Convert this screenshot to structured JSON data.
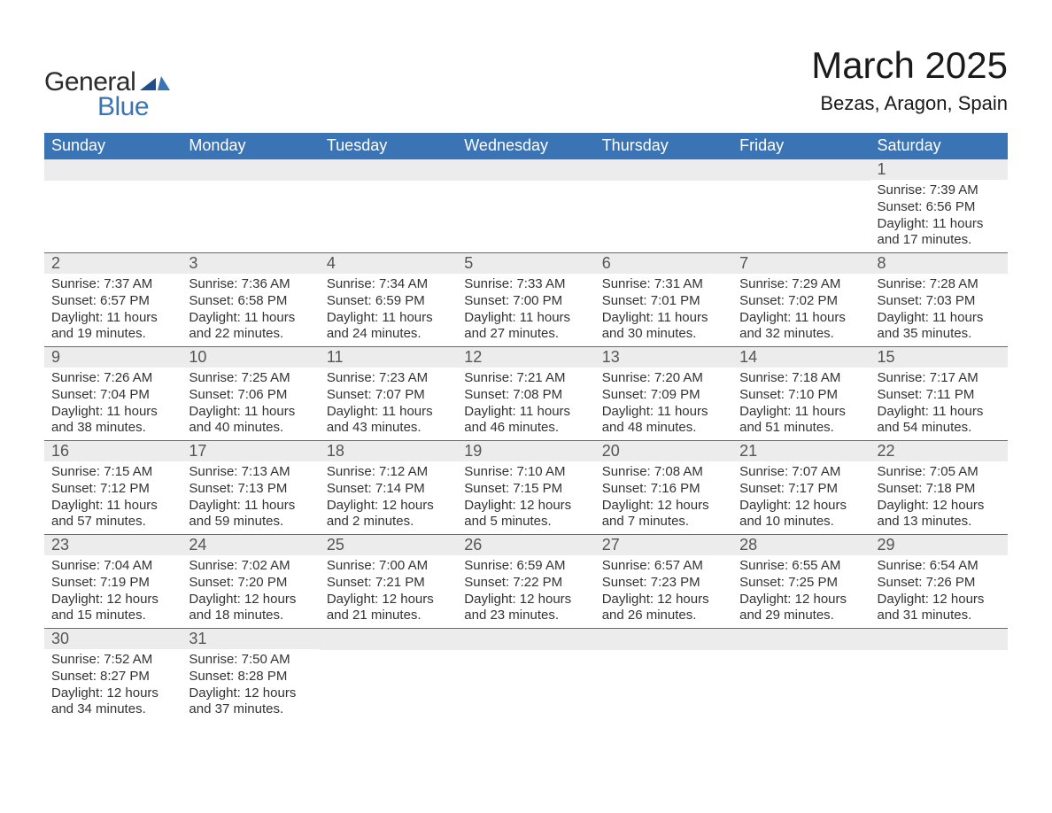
{
  "colors": {
    "header_bg": "#3a74b4",
    "header_text": "#ffffff",
    "daynum_bg": "#ececec",
    "daynum_text": "#555555",
    "body_text": "#333333",
    "row_border": "#3a74b4",
    "page_bg": "#ffffff",
    "logo_dark": "#2b2b2b",
    "logo_blue": "#3a74b4"
  },
  "typography": {
    "family": "Arial, Helvetica, sans-serif",
    "title_size_pt": 32,
    "location_size_pt": 17,
    "header_size_pt": 14,
    "daynum_size_pt": 14,
    "body_size_pt": 11
  },
  "logo": {
    "line1": "General",
    "line2": "Blue"
  },
  "title": "March 2025",
  "location": "Bezas, Aragon, Spain",
  "weekdays": [
    "Sunday",
    "Monday",
    "Tuesday",
    "Wednesday",
    "Thursday",
    "Friday",
    "Saturday"
  ],
  "labels": {
    "sunrise": "Sunrise:",
    "sunset": "Sunset:",
    "daylight": "Daylight:"
  },
  "calendar": {
    "type": "table",
    "columns": 7,
    "leading_blanks": 6,
    "days": [
      {
        "n": "1",
        "sunrise": "7:39 AM",
        "sunset": "6:56 PM",
        "daylight": "11 hours and 17 minutes."
      },
      {
        "n": "2",
        "sunrise": "7:37 AM",
        "sunset": "6:57 PM",
        "daylight": "11 hours and 19 minutes."
      },
      {
        "n": "3",
        "sunrise": "7:36 AM",
        "sunset": "6:58 PM",
        "daylight": "11 hours and 22 minutes."
      },
      {
        "n": "4",
        "sunrise": "7:34 AM",
        "sunset": "6:59 PM",
        "daylight": "11 hours and 24 minutes."
      },
      {
        "n": "5",
        "sunrise": "7:33 AM",
        "sunset": "7:00 PM",
        "daylight": "11 hours and 27 minutes."
      },
      {
        "n": "6",
        "sunrise": "7:31 AM",
        "sunset": "7:01 PM",
        "daylight": "11 hours and 30 minutes."
      },
      {
        "n": "7",
        "sunrise": "7:29 AM",
        "sunset": "7:02 PM",
        "daylight": "11 hours and 32 minutes."
      },
      {
        "n": "8",
        "sunrise": "7:28 AM",
        "sunset": "7:03 PM",
        "daylight": "11 hours and 35 minutes."
      },
      {
        "n": "9",
        "sunrise": "7:26 AM",
        "sunset": "7:04 PM",
        "daylight": "11 hours and 38 minutes."
      },
      {
        "n": "10",
        "sunrise": "7:25 AM",
        "sunset": "7:06 PM",
        "daylight": "11 hours and 40 minutes."
      },
      {
        "n": "11",
        "sunrise": "7:23 AM",
        "sunset": "7:07 PM",
        "daylight": "11 hours and 43 minutes."
      },
      {
        "n": "12",
        "sunrise": "7:21 AM",
        "sunset": "7:08 PM",
        "daylight": "11 hours and 46 minutes."
      },
      {
        "n": "13",
        "sunrise": "7:20 AM",
        "sunset": "7:09 PM",
        "daylight": "11 hours and 48 minutes."
      },
      {
        "n": "14",
        "sunrise": "7:18 AM",
        "sunset": "7:10 PM",
        "daylight": "11 hours and 51 minutes."
      },
      {
        "n": "15",
        "sunrise": "7:17 AM",
        "sunset": "7:11 PM",
        "daylight": "11 hours and 54 minutes."
      },
      {
        "n": "16",
        "sunrise": "7:15 AM",
        "sunset": "7:12 PM",
        "daylight": "11 hours and 57 minutes."
      },
      {
        "n": "17",
        "sunrise": "7:13 AM",
        "sunset": "7:13 PM",
        "daylight": "11 hours and 59 minutes."
      },
      {
        "n": "18",
        "sunrise": "7:12 AM",
        "sunset": "7:14 PM",
        "daylight": "12 hours and 2 minutes."
      },
      {
        "n": "19",
        "sunrise": "7:10 AM",
        "sunset": "7:15 PM",
        "daylight": "12 hours and 5 minutes."
      },
      {
        "n": "20",
        "sunrise": "7:08 AM",
        "sunset": "7:16 PM",
        "daylight": "12 hours and 7 minutes."
      },
      {
        "n": "21",
        "sunrise": "7:07 AM",
        "sunset": "7:17 PM",
        "daylight": "12 hours and 10 minutes."
      },
      {
        "n": "22",
        "sunrise": "7:05 AM",
        "sunset": "7:18 PM",
        "daylight": "12 hours and 13 minutes."
      },
      {
        "n": "23",
        "sunrise": "7:04 AM",
        "sunset": "7:19 PM",
        "daylight": "12 hours and 15 minutes."
      },
      {
        "n": "24",
        "sunrise": "7:02 AM",
        "sunset": "7:20 PM",
        "daylight": "12 hours and 18 minutes."
      },
      {
        "n": "25",
        "sunrise": "7:00 AM",
        "sunset": "7:21 PM",
        "daylight": "12 hours and 21 minutes."
      },
      {
        "n": "26",
        "sunrise": "6:59 AM",
        "sunset": "7:22 PM",
        "daylight": "12 hours and 23 minutes."
      },
      {
        "n": "27",
        "sunrise": "6:57 AM",
        "sunset": "7:23 PM",
        "daylight": "12 hours and 26 minutes."
      },
      {
        "n": "28",
        "sunrise": "6:55 AM",
        "sunset": "7:25 PM",
        "daylight": "12 hours and 29 minutes."
      },
      {
        "n": "29",
        "sunrise": "6:54 AM",
        "sunset": "7:26 PM",
        "daylight": "12 hours and 31 minutes."
      },
      {
        "n": "30",
        "sunrise": "7:52 AM",
        "sunset": "8:27 PM",
        "daylight": "12 hours and 34 minutes."
      },
      {
        "n": "31",
        "sunrise": "7:50 AM",
        "sunset": "8:28 PM",
        "daylight": "12 hours and 37 minutes."
      }
    ]
  }
}
